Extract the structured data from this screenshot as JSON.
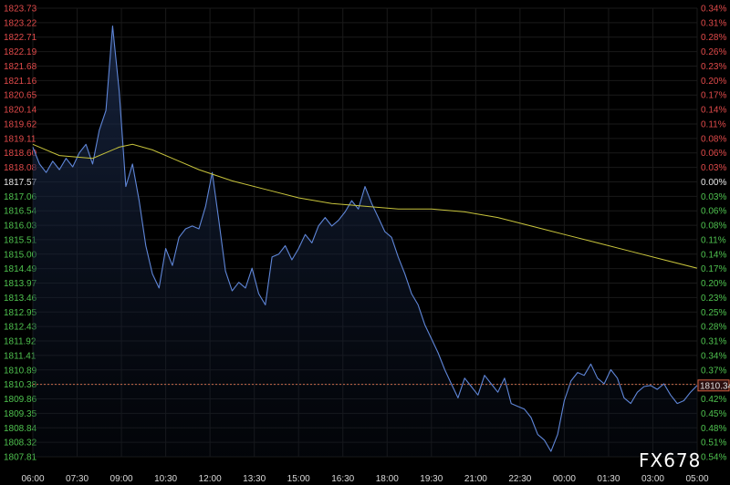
{
  "chart_data": {
    "type": "line",
    "title": "",
    "watermark": "FX678",
    "ylim": [
      1807.81,
      1823.73
    ],
    "y_ticks": [
      "1823.73",
      "1823.22",
      "1822.71",
      "1822.19",
      "1821.68",
      "1821.16",
      "1820.65",
      "1820.14",
      "1819.62",
      "1819.11",
      "1818.60",
      "1818.08",
      "1817.57",
      "1817.06",
      "1816.54",
      "1816.03",
      "1815.51",
      "1815.00",
      "1814.49",
      "1813.97",
      "1813.46",
      "1812.95",
      "1812.43",
      "1811.92",
      "1811.41",
      "1810.89",
      "1810.38",
      "1809.86",
      "1809.35",
      "1808.84",
      "1808.32",
      "1807.81"
    ],
    "pct_ticks": [
      "0.34%",
      "0.31%",
      "0.28%",
      "0.26%",
      "0.23%",
      "0.20%",
      "0.17%",
      "0.14%",
      "0.11%",
      "0.08%",
      "0.06%",
      "0.03%",
      "0.00%",
      "0.03%",
      "0.06%",
      "0.08%",
      "0.11%",
      "0.14%",
      "0.17%",
      "0.20%",
      "0.23%",
      "0.25%",
      "0.28%",
      "0.31%",
      "0.34%",
      "0.37%",
      "0.40%",
      "0.42%",
      "0.45%",
      "0.48%",
      "0.51%",
      "0.54%"
    ],
    "x_ticks": [
      "06:00",
      "07:30",
      "09:00",
      "10:30",
      "12:00",
      "13:30",
      "15:00",
      "16:30",
      "18:00",
      "19:30",
      "21:00",
      "22:30",
      "00:00",
      "01:30",
      "03:00",
      "05:00"
    ],
    "reference_price": 1817.57,
    "dashed_level": 1810.38,
    "last_price_label": "1810.34",
    "series": [
      {
        "style": "area-line",
        "color": "#5f86d8",
        "x": [
          0,
          0.01,
          0.02,
          0.03,
          0.04,
          0.05,
          0.06,
          0.07,
          0.08,
          0.09,
          0.1,
          0.11,
          0.12,
          0.13,
          0.14,
          0.15,
          0.16,
          0.17,
          0.18,
          0.19,
          0.2,
          0.21,
          0.22,
          0.23,
          0.24,
          0.25,
          0.26,
          0.27,
          0.28,
          0.29,
          0.3,
          0.31,
          0.32,
          0.33,
          0.34,
          0.35,
          0.36,
          0.37,
          0.38,
          0.39,
          0.4,
          0.41,
          0.42,
          0.43,
          0.44,
          0.45,
          0.46,
          0.47,
          0.48,
          0.49,
          0.5,
          0.51,
          0.52,
          0.53,
          0.54,
          0.55,
          0.56,
          0.57,
          0.58,
          0.59,
          0.6,
          0.61,
          0.62,
          0.63,
          0.64,
          0.65,
          0.66,
          0.67,
          0.68,
          0.69,
          0.7,
          0.71,
          0.72,
          0.73,
          0.74,
          0.75,
          0.76,
          0.77,
          0.78,
          0.79,
          0.8,
          0.81,
          0.82,
          0.83,
          0.84,
          0.85,
          0.86,
          0.87,
          0.88,
          0.89,
          0.9,
          0.91,
          0.92,
          0.93,
          0.94,
          0.95,
          0.96,
          0.97,
          0.98,
          0.99,
          1
        ],
        "values": [
          1818.8,
          1818.2,
          1817.9,
          1818.3,
          1818.0,
          1818.4,
          1818.1,
          1818.6,
          1818.9,
          1818.2,
          1819.4,
          1820.1,
          1823.1,
          1820.8,
          1817.4,
          1818.2,
          1816.9,
          1815.3,
          1814.3,
          1813.8,
          1815.2,
          1814.6,
          1815.6,
          1815.9,
          1816.0,
          1815.9,
          1816.7,
          1817.9,
          1816.2,
          1814.4,
          1813.7,
          1814.0,
          1813.8,
          1814.5,
          1813.6,
          1813.2,
          1814.9,
          1815.0,
          1815.3,
          1814.8,
          1815.2,
          1815.7,
          1815.4,
          1816.0,
          1816.3,
          1816.0,
          1816.2,
          1816.5,
          1816.9,
          1816.6,
          1817.4,
          1816.8,
          1816.3,
          1815.8,
          1815.6,
          1814.9,
          1814.3,
          1813.6,
          1813.2,
          1812.5,
          1812.0,
          1811.5,
          1810.9,
          1810.4,
          1809.9,
          1810.6,
          1810.3,
          1810.0,
          1810.7,
          1810.4,
          1810.1,
          1810.6,
          1809.7,
          1809.6,
          1809.5,
          1809.2,
          1808.6,
          1808.4,
          1808.0,
          1808.6,
          1809.8,
          1810.5,
          1810.8,
          1810.7,
          1811.1,
          1810.6,
          1810.4,
          1810.9,
          1810.6,
          1809.9,
          1809.7,
          1810.1,
          1810.3,
          1810.34,
          1810.2,
          1810.4,
          1810.0,
          1809.7,
          1809.8,
          1810.1,
          1810.34
        ]
      },
      {
        "style": "line",
        "color": "#c8c43c",
        "x": [
          0,
          0.04,
          0.09,
          0.13,
          0.15,
          0.18,
          0.21,
          0.25,
          0.3,
          0.35,
          0.4,
          0.45,
          0.5,
          0.55,
          0.6,
          0.65,
          0.7,
          0.75,
          0.8,
          0.85,
          0.9,
          0.95,
          1
        ],
        "values": [
          1818.9,
          1818.5,
          1818.4,
          1818.8,
          1818.9,
          1818.7,
          1818.4,
          1818.0,
          1817.6,
          1817.3,
          1817.0,
          1816.8,
          1816.7,
          1816.6,
          1816.6,
          1816.5,
          1816.3,
          1816.0,
          1815.7,
          1815.4,
          1815.1,
          1814.8,
          1814.5
        ]
      }
    ]
  }
}
